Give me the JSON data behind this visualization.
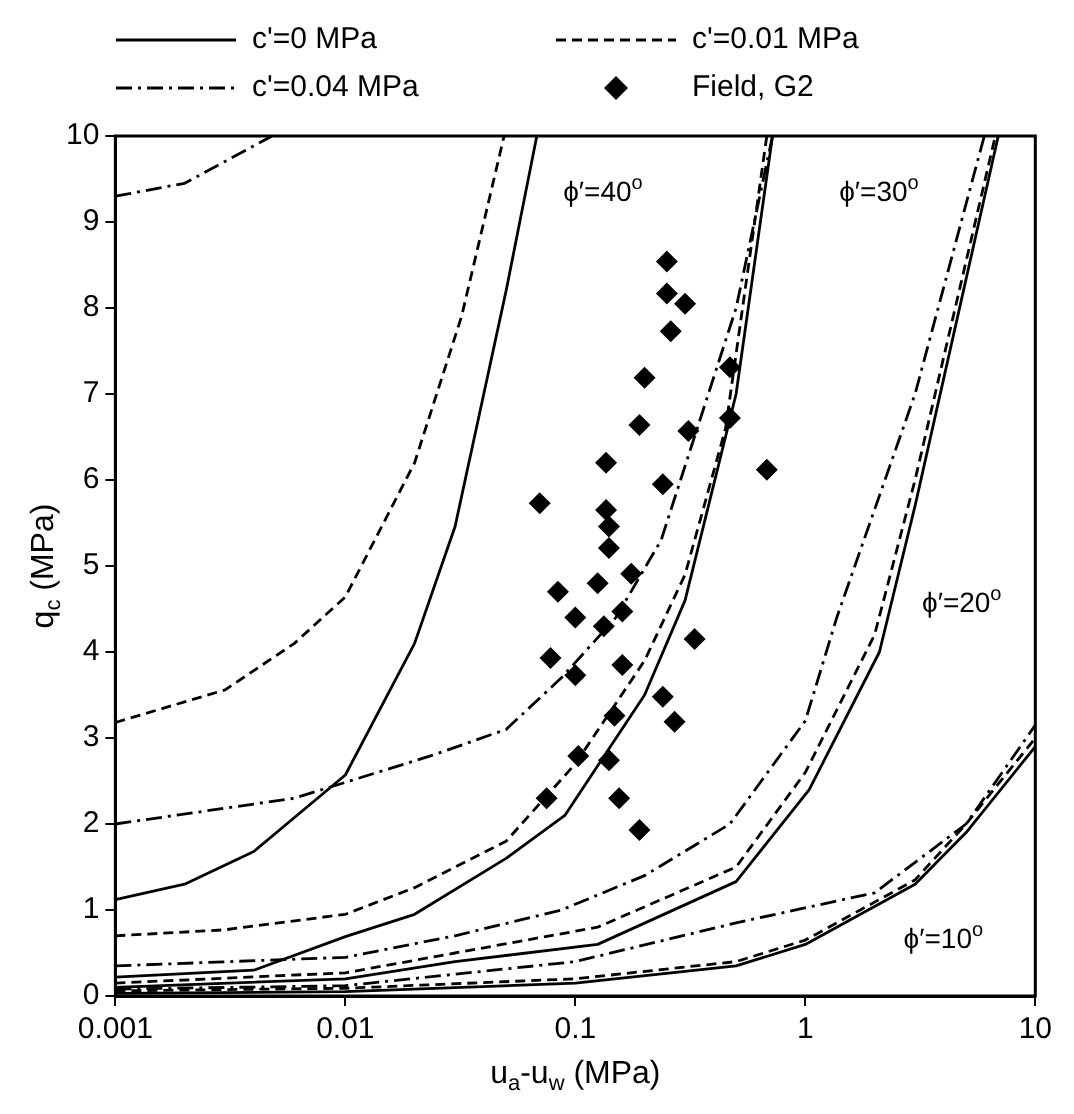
{
  "chart_data": {
    "type": "line",
    "xlabel": "u$_{a}$-u$_{w}$ (MPa)",
    "ylabel": "q$_{c}$ (MPa)",
    "log": "x",
    "grid": false,
    "legend": "top",
    "xlim": [
      0.001,
      10
    ],
    "xticks": [
      0.001,
      0.01,
      0.1,
      1,
      10
    ],
    "ylim": [
      0,
      10
    ],
    "yticks": [
      0,
      1,
      2,
      3,
      4,
      5,
      6,
      7,
      8,
      9,
      10
    ],
    "annotations": [
      "ϕ′=40$^{o}$",
      "ϕ′=30$^{o}$",
      "ϕ′=20$^{o}$",
      "ϕ′=10$^{o}$"
    ],
    "series": [
      {
        "name": "c'=0 MPa",
        "line_style": "solid",
        "marker": "none",
        "color": "#000000",
        "x": [
          0.001,
          0.002,
          0.004,
          0.01,
          0.02,
          0.03,
          0.05,
          0.068
        ],
        "values": [
          1.12,
          1.3,
          1.68,
          2.57,
          4.1,
          5.46,
          8.2,
          10
        ]
      },
      {
        "name": "c'=0.01 MPa",
        "line_style": "dashed",
        "marker": "none",
        "color": "#000000",
        "x": [
          0.001,
          0.003,
          0.006,
          0.01,
          0.02,
          0.032,
          0.049
        ],
        "values": [
          3.18,
          3.56,
          4.1,
          4.64,
          6.2,
          7.9,
          10
        ]
      },
      {
        "name": "c'=0.04 MPa",
        "line_style": "dashdot",
        "marker": "none",
        "color": "#000000",
        "x": [
          0.001,
          0.002,
          0.0048
        ],
        "values": [
          9.3,
          9.45,
          10
        ]
      },
      {
        "line_style": "solid",
        "marker": "none",
        "color": "#000000",
        "x": [
          0.001,
          0.004,
          0.01,
          0.02,
          0.05,
          0.09,
          0.2,
          0.3,
          0.5,
          0.72
        ],
        "values": [
          0.22,
          0.3,
          0.69,
          0.95,
          1.6,
          2.1,
          3.5,
          4.6,
          7.0,
          10
        ]
      },
      {
        "line_style": "dashed",
        "marker": "none",
        "color": "#000000",
        "x": [
          0.001,
          0.003,
          0.01,
          0.02,
          0.05,
          0.1,
          0.2,
          0.3,
          0.45,
          0.68
        ],
        "values": [
          0.7,
          0.77,
          0.95,
          1.26,
          1.8,
          2.7,
          3.9,
          4.9,
          6.6,
          10
        ]
      },
      {
        "line_style": "dashdot",
        "marker": "none",
        "color": "#000000",
        "x": [
          0.001,
          0.006,
          0.024,
          0.05,
          0.087,
          0.15,
          0.236,
          0.5,
          0.72
        ],
        "values": [
          2.0,
          2.3,
          2.8,
          3.1,
          3.7,
          4.4,
          5.3,
          8.0,
          10
        ]
      },
      {
        "line_style": "solid",
        "marker": "none",
        "color": "#000000",
        "x": [
          0.001,
          0.01,
          0.03,
          0.125,
          0.5,
          1.04,
          2.1,
          3.0,
          6.9
        ],
        "values": [
          0.1,
          0.2,
          0.4,
          0.6,
          1.33,
          2.4,
          4.0,
          5.7,
          10
        ]
      },
      {
        "line_style": "dashed",
        "marker": "none",
        "color": "#000000",
        "x": [
          0.001,
          0.01,
          0.03,
          0.125,
          0.5,
          1.0,
          2.0,
          3.0,
          6.7
        ],
        "values": [
          0.15,
          0.27,
          0.5,
          0.8,
          1.5,
          2.6,
          4.2,
          6.0,
          10
        ]
      },
      {
        "line_style": "dashdot",
        "marker": "none",
        "color": "#000000",
        "x": [
          0.001,
          0.01,
          0.03,
          0.087,
          0.2,
          0.47,
          1.0,
          1.37,
          3.0,
          6.0
        ],
        "values": [
          0.35,
          0.45,
          0.7,
          1.0,
          1.4,
          2.0,
          3.2,
          4.4,
          7.0,
          10
        ]
      },
      {
        "line_style": "solid",
        "marker": "none",
        "color": "#000000",
        "x": [
          0.001,
          0.01,
          0.1,
          0.5,
          1,
          3,
          5,
          10
        ],
        "values": [
          0.03,
          0.05,
          0.15,
          0.35,
          0.6,
          1.3,
          1.9,
          2.9
        ]
      },
      {
        "line_style": "dashed",
        "marker": "none",
        "color": "#000000",
        "x": [
          0.001,
          0.01,
          0.1,
          0.5,
          1,
          3,
          5,
          10
        ],
        "values": [
          0.06,
          0.09,
          0.2,
          0.4,
          0.65,
          1.35,
          2.0,
          3.0
        ]
      },
      {
        "line_style": "dashdot",
        "marker": "none",
        "color": "#000000",
        "x": [
          0.001,
          0.01,
          0.1,
          0.5,
          2,
          5,
          10
        ],
        "values": [
          0.08,
          0.12,
          0.4,
          0.85,
          1.2,
          2.0,
          3.15
        ]
      },
      {
        "name": "Field, G2",
        "type": "scatter",
        "marker": "diamond",
        "color": "#000000",
        "x": [
          0.25,
          0.25,
          0.3,
          0.26,
          0.47,
          0.2,
          0.47,
          0.19,
          0.31,
          0.68,
          0.136,
          0.07,
          0.24,
          0.136,
          0.14,
          0.14,
          0.175,
          0.084,
          0.125,
          0.1,
          0.133,
          0.16,
          0.078,
          0.1,
          0.16,
          0.148,
          0.103,
          0.14,
          0.33,
          0.24,
          0.27,
          0.075,
          0.155,
          0.19
        ],
        "values": [
          8.54,
          8.17,
          8.05,
          7.73,
          7.31,
          7.19,
          6.72,
          6.64,
          6.57,
          6.12,
          6.2,
          5.73,
          5.95,
          5.65,
          5.46,
          5.21,
          4.91,
          4.7,
          4.8,
          4.4,
          4.3,
          4.47,
          3.93,
          3.73,
          3.85,
          3.26,
          2.79,
          2.74,
          4.15,
          3.48,
          3.19,
          2.3,
          2.3,
          1.93
        ]
      }
    ]
  }
}
